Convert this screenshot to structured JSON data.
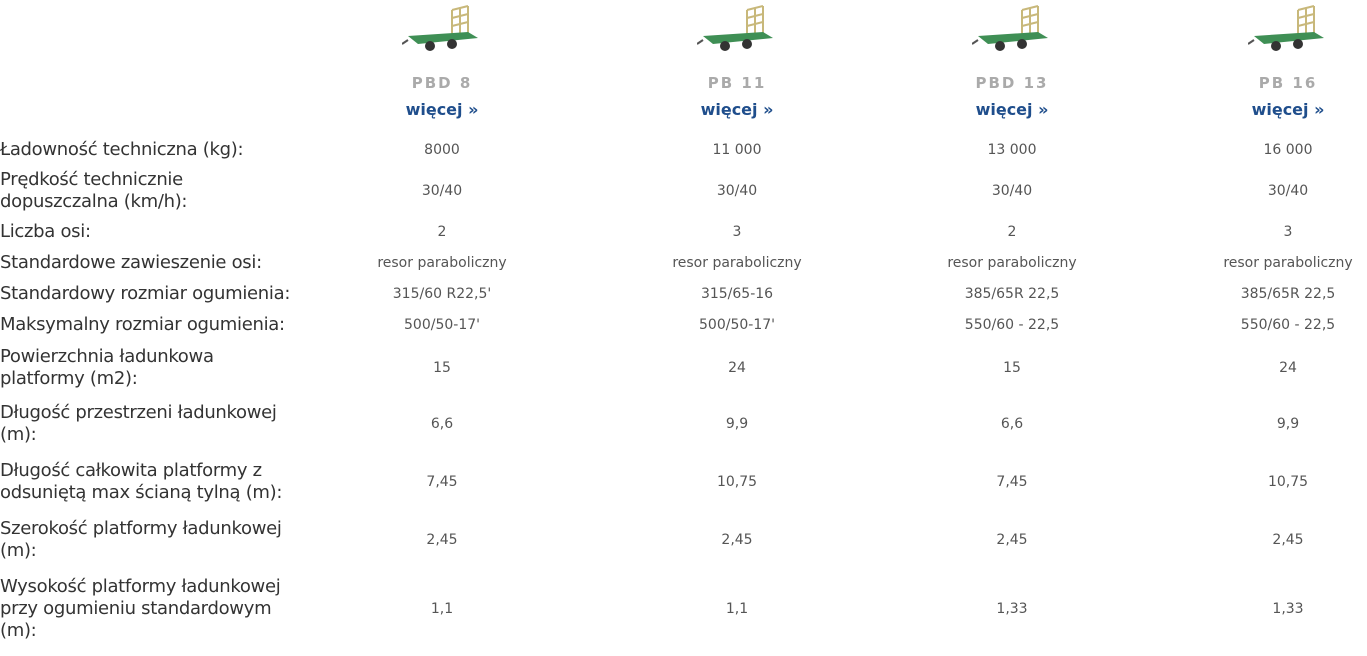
{
  "products": [
    {
      "name": "PBD 8",
      "link": "więcej »"
    },
    {
      "name": "PB 11",
      "link": "więcej »"
    },
    {
      "name": "PBD 13",
      "link": "więcej »"
    },
    {
      "name": "PB 16",
      "link": "więcej »"
    }
  ],
  "rows": [
    {
      "label": "Ładowność techniczna (kg):",
      "values": [
        "8000",
        "11 000",
        "13 000",
        "16 000"
      ]
    },
    {
      "label": "Prędkość technicznie dopuszczalna (km/h):",
      "values": [
        "30/40",
        "30/40",
        "30/40",
        "30/40"
      ]
    },
    {
      "label": "Liczba osi:",
      "values": [
        "2",
        "3",
        "2",
        "3"
      ]
    },
    {
      "label": "Standardowe zawieszenie osi:",
      "values": [
        "resor paraboliczny",
        "resor paraboliczny",
        "resor paraboliczny",
        "resor paraboliczny"
      ]
    },
    {
      "label": "Standardowy rozmiar ogumienia:",
      "values": [
        "315/60 R22,5'",
        "315/65-16",
        "385/65R 22,5",
        "385/65R 22,5"
      ]
    },
    {
      "label": "Maksymalny rozmiar ogumienia:",
      "values": [
        "500/50-17'",
        "500/50-17'",
        "550/60 - 22,5",
        "550/60 - 22,5"
      ]
    },
    {
      "label": "Powierzchnia ładunkowa platformy (m2):",
      "values": [
        "15",
        "24",
        "15",
        "24"
      ]
    },
    {
      "label": "Długość przestrzeni ładunkowej (m):",
      "values": [
        "6,6",
        "9,9",
        "6,6",
        "9,9"
      ]
    },
    {
      "label": "Długość całkowita platformy z odsuniętą max ścianą tylną (m):",
      "values": [
        "7,45",
        "10,75",
        "7,45",
        "10,75"
      ]
    },
    {
      "label": "Szerokość platformy ładunkowej (m):",
      "values": [
        "2,45",
        "2,45",
        "2,45",
        "2,45"
      ]
    },
    {
      "label": "Wysokość platformy ładunkowej przy ogumieniu standardowym (m):",
      "values": [
        "1,1",
        "1,1",
        "1,33",
        "1,33"
      ]
    }
  ]
}
